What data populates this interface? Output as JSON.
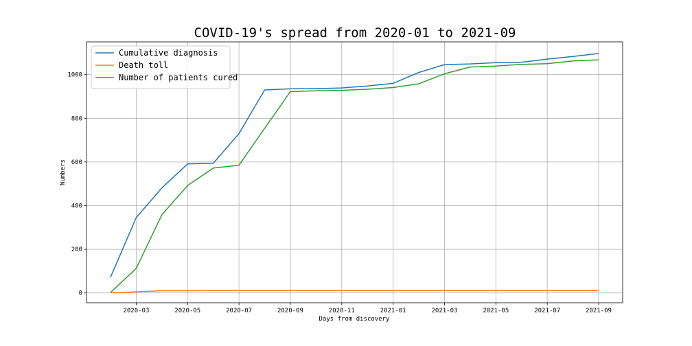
{
  "chart_data": {
    "type": "line",
    "title": "COVID-19's spread from 2020-01 to 2021-09",
    "xlabel": "Days from discovery",
    "ylabel": "Numbers",
    "x": [
      "2020-02",
      "2020-03",
      "2020-04",
      "2020-05",
      "2020-06",
      "2020-07",
      "2020-08",
      "2020-09",
      "2020-10",
      "2020-11",
      "2020-12",
      "2021-01",
      "2021-02",
      "2021-03",
      "2021-04",
      "2021-05",
      "2021-06",
      "2021-07",
      "2021-08",
      "2021-09"
    ],
    "x_ticks": [
      "2020-03",
      "2020-05",
      "2020-07",
      "2020-09",
      "2020-11",
      "2021-01",
      "2021-03",
      "2021-05",
      "2021-07",
      "2021-09"
    ],
    "y_ticks": [
      0,
      200,
      400,
      600,
      800,
      1000
    ],
    "ylim": [
      -45,
      1150
    ],
    "grid": true,
    "legend_position": "top-left",
    "series": [
      {
        "name": "Cumulative diagnosis",
        "color": "#1f77b4",
        "values": [
          72,
          345,
          481,
          591,
          594,
          730,
          930,
          935,
          936,
          939,
          948,
          960,
          1010,
          1046,
          1049,
          1055,
          1057,
          1071,
          1083,
          1097
        ]
      },
      {
        "name": "Death toll",
        "color": "#ff7f0e",
        "values": [
          1,
          5,
          10,
          10,
          11,
          11,
          11,
          11,
          11,
          11,
          11,
          11,
          11,
          11,
          11,
          11,
          11,
          11,
          11,
          11
        ]
      },
      {
        "name": "Number of patients cured",
        "color": "#2ca02c",
        "values": [
          2,
          112,
          358,
          492,
          572,
          585,
          754,
          922,
          926,
          928,
          933,
          941,
          958,
          1004,
          1035,
          1039,
          1047,
          1050,
          1063,
          1068
        ]
      }
    ]
  }
}
